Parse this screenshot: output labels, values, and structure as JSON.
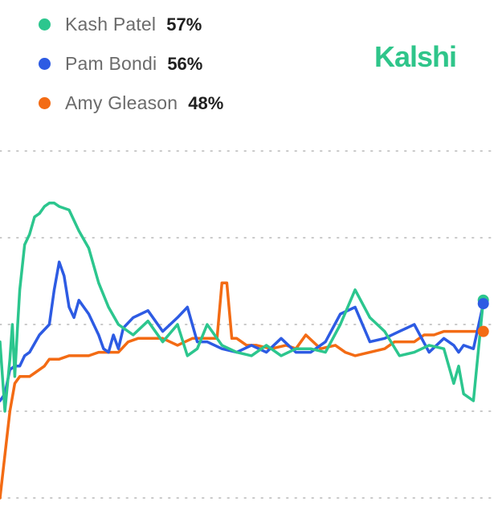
{
  "brand": {
    "name": "Kalshi",
    "color": "#2fc58a"
  },
  "chart_data": {
    "type": "line",
    "title": "",
    "xlabel": "",
    "ylabel": "",
    "ylim": [
      0,
      100
    ],
    "grid": true,
    "legend_position": "top-left",
    "series": [
      {
        "name": "Kash Patel",
        "label": "57%",
        "color": "#2cc68e",
        "x": [
          0,
          1,
          2,
          2.5,
          3,
          3.5,
          4,
          5,
          6,
          7,
          8,
          9,
          10,
          11,
          12,
          14,
          16,
          18,
          20,
          22,
          24,
          27,
          30,
          33,
          36,
          38,
          40,
          42,
          45,
          48,
          51,
          54,
          57,
          60,
          63,
          66,
          69,
          72,
          75,
          78,
          81,
          84,
          87,
          90,
          92,
          93,
          94,
          96,
          98
        ],
        "y": [
          45,
          25,
          40,
          50,
          35,
          48,
          60,
          73,
          76,
          81,
          82,
          84,
          85,
          85,
          84,
          83,
          77,
          72,
          62,
          55,
          50,
          47,
          51,
          45,
          50,
          41,
          43,
          50,
          44,
          42,
          41,
          44,
          41,
          43,
          43,
          42,
          50,
          60,
          52,
          48,
          41,
          42,
          44,
          43,
          33,
          38,
          30,
          28,
          57
        ]
      },
      {
        "name": "Pam Bondi",
        "label": "56%",
        "color": "#2d5be3",
        "x": [
          0,
          1,
          2,
          3,
          4,
          5,
          6,
          8,
          10,
          11,
          12,
          13,
          14,
          15,
          16,
          18,
          20,
          21,
          22,
          23,
          24,
          25,
          27,
          30,
          33,
          36,
          38,
          40,
          42,
          45,
          48,
          51,
          54,
          57,
          60,
          63,
          66,
          69,
          72,
          75,
          78,
          81,
          84,
          87,
          90,
          92,
          93,
          94,
          96,
          98
        ],
        "y": [
          28,
          30,
          37,
          38,
          38,
          41,
          42,
          47,
          50,
          60,
          68,
          64,
          55,
          52,
          57,
          53,
          47,
          43,
          42,
          47,
          43,
          49,
          52,
          54,
          48,
          52,
          55,
          45,
          45,
          43,
          42,
          44,
          42,
          46,
          42,
          42,
          45,
          53,
          55,
          45,
          46,
          48,
          50,
          42,
          46,
          44,
          42,
          44,
          43,
          56
        ]
      },
      {
        "name": "Amy Gleason",
        "label": "48%",
        "color": "#f36b14",
        "x": [
          0,
          2,
          3,
          4,
          5,
          6,
          7,
          8,
          9,
          10,
          11,
          12,
          14,
          16,
          18,
          20,
          22,
          24,
          26,
          28,
          30,
          33,
          36,
          39,
          42,
          44,
          45,
          46,
          47,
          48,
          50,
          52,
          55,
          58,
          60,
          62,
          65,
          68,
          70,
          72,
          75,
          78,
          80,
          82,
          84,
          86,
          88,
          90,
          92,
          94,
          96,
          98
        ],
        "y": [
          0,
          25,
          33,
          35,
          35,
          35,
          36,
          37,
          38,
          40,
          40,
          40,
          41,
          41,
          41,
          42,
          42,
          42,
          45,
          46,
          46,
          46,
          44,
          46,
          46,
          46,
          62,
          62,
          46,
          46,
          44,
          44,
          43,
          44,
          43,
          47,
          43,
          44,
          42,
          41,
          42,
          43,
          45,
          45,
          45,
          47,
          47,
          48,
          48,
          48,
          48,
          48
        ]
      }
    ]
  }
}
